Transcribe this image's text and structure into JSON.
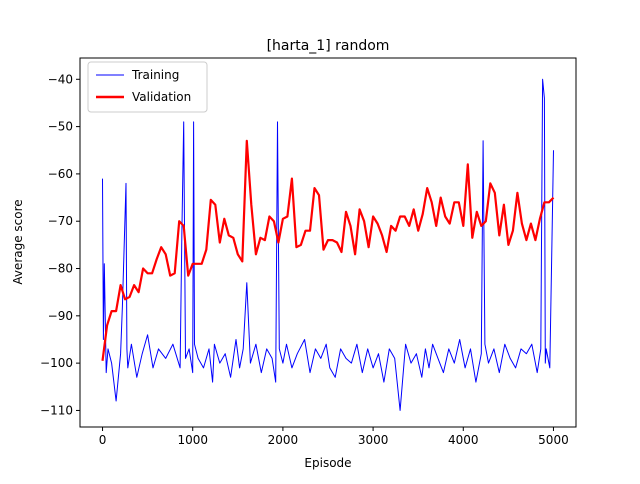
{
  "chart_data": {
    "type": "line",
    "title": "[harta_1] random",
    "xlabel": "Episode",
    "ylabel": "Average score",
    "xlim": [
      -250,
      5250
    ],
    "ylim": [
      -113.5,
      -35.5
    ],
    "xticks": [
      0,
      1000,
      2000,
      3000,
      4000,
      5000
    ],
    "xtick_labels": [
      "0",
      "1000",
      "2000",
      "3000",
      "4000",
      "5000"
    ],
    "yticks": [
      -110,
      -100,
      -90,
      -80,
      -70,
      -60,
      -50,
      -40
    ],
    "ytick_labels": [
      "−110",
      "−100",
      "−90",
      "−80",
      "−70",
      "−60",
      "−50",
      "−40"
    ],
    "grid": false,
    "legend_position": "upper-left",
    "series": [
      {
        "name": "Training",
        "color": "#0000ff",
        "style": "thin",
        "x": [
          0,
          10,
          20,
          40,
          60,
          100,
          150,
          200,
          220,
          260,
          270,
          280,
          320,
          380,
          440,
          500,
          560,
          620,
          700,
          780,
          860,
          880,
          900,
          920,
          960,
          1000,
          1010,
          1020,
          1060,
          1120,
          1180,
          1220,
          1240,
          1300,
          1360,
          1420,
          1480,
          1520,
          1560,
          1600,
          1640,
          1700,
          1760,
          1820,
          1880,
          1920,
          1940,
          1960,
          2000,
          2040,
          2100,
          2160,
          2240,
          2300,
          2360,
          2420,
          2480,
          2520,
          2580,
          2640,
          2700,
          2760,
          2820,
          2880,
          2940,
          3000,
          3060,
          3120,
          3180,
          3240,
          3300,
          3360,
          3420,
          3480,
          3540,
          3580,
          3620,
          3660,
          3720,
          3780,
          3840,
          3900,
          3960,
          4020,
          4080,
          4140,
          4200,
          4220,
          4240,
          4280,
          4340,
          4400,
          4460,
          4520,
          4580,
          4640,
          4700,
          4760,
          4820,
          4860,
          4880,
          4900,
          4910,
          4920,
          4960,
          5000
        ],
        "y": [
          -61,
          -95,
          -79,
          -102,
          -97,
          -100,
          -108,
          -98,
          -88,
          -62,
          -97,
          -101,
          -96,
          -103,
          -98,
          -94,
          -101,
          -97,
          -99,
          -96,
          -101,
          -72,
          -49,
          -99,
          -97,
          -102,
          -49,
          -96,
          -99,
          -101,
          -97,
          -104,
          -96,
          -100,
          -98,
          -103,
          -95,
          -101,
          -97,
          -83,
          -100,
          -96,
          -102,
          -97,
          -99,
          -104,
          -49,
          -97,
          -100,
          -96,
          -101,
          -98,
          -95,
          -102,
          -97,
          -99,
          -96,
          -101,
          -103,
          -97,
          -99,
          -100,
          -96,
          -102,
          -97,
          -101,
          -98,
          -104,
          -97,
          -99,
          -110,
          -96,
          -100,
          -98,
          -103,
          -97,
          -101,
          -96,
          -99,
          -102,
          -97,
          -100,
          -95,
          -101,
          -97,
          -104,
          -98,
          -53,
          -96,
          -100,
          -97,
          -102,
          -96,
          -99,
          -101,
          -97,
          -98,
          -96,
          -102,
          -97,
          -40,
          -44,
          -100,
          -97,
          -101,
          -55
        ]
      },
      {
        "name": "Validation",
        "color": "#ff0000",
        "style": "thick",
        "x": [
          0,
          50,
          100,
          150,
          200,
          250,
          300,
          350,
          400,
          450,
          500,
          550,
          600,
          650,
          700,
          750,
          800,
          850,
          900,
          950,
          1000,
          1050,
          1100,
          1150,
          1200,
          1250,
          1300,
          1350,
          1400,
          1450,
          1500,
          1550,
          1600,
          1650,
          1700,
          1750,
          1800,
          1850,
          1900,
          1950,
          2000,
          2050,
          2100,
          2150,
          2200,
          2250,
          2300,
          2350,
          2400,
          2450,
          2500,
          2550,
          2600,
          2650,
          2700,
          2750,
          2800,
          2850,
          2900,
          2950,
          3000,
          3050,
          3100,
          3150,
          3200,
          3250,
          3300,
          3350,
          3400,
          3450,
          3500,
          3550,
          3600,
          3650,
          3700,
          3750,
          3800,
          3850,
          3900,
          3950,
          4000,
          4050,
          4100,
          4150,
          4200,
          4250,
          4300,
          4350,
          4400,
          4450,
          4500,
          4550,
          4600,
          4650,
          4700,
          4750,
          4800,
          4850,
          4900,
          4950,
          5000
        ],
        "y": [
          -99.5,
          -92,
          -89,
          -89,
          -83.5,
          -86.5,
          -86,
          -83.5,
          -85,
          -80,
          -81,
          -81,
          -78,
          -75.5,
          -77,
          -81.5,
          -81,
          -70,
          -71,
          -81.5,
          -79,
          -79,
          -79,
          -76,
          -65.5,
          -66.5,
          -74.5,
          -69.5,
          -73,
          -73.5,
          -77,
          -78.5,
          -53,
          -66.5,
          -77,
          -73.5,
          -74,
          -69,
          -70,
          -74.5,
          -69.5,
          -69,
          -61,
          -75.5,
          -75,
          -72,
          -72,
          -63,
          -64.5,
          -76,
          -74,
          -74,
          -74.5,
          -76.5,
          -68,
          -71,
          -77,
          -67.5,
          -70,
          -75.5,
          -69,
          -70.5,
          -73,
          -76.5,
          -71,
          -72,
          -69,
          -69,
          -71,
          -67.5,
          -72,
          -68.5,
          -63,
          -66,
          -71,
          -65,
          -69,
          -70.5,
          -66,
          -66,
          -71,
          -58,
          -73.5,
          -68,
          -71,
          -70,
          -62,
          -64,
          -73,
          -66.5,
          -75,
          -72,
          -64,
          -70.5,
          -74,
          -70.5,
          -74,
          -69.5,
          -66,
          -66,
          -65
        ]
      }
    ]
  }
}
